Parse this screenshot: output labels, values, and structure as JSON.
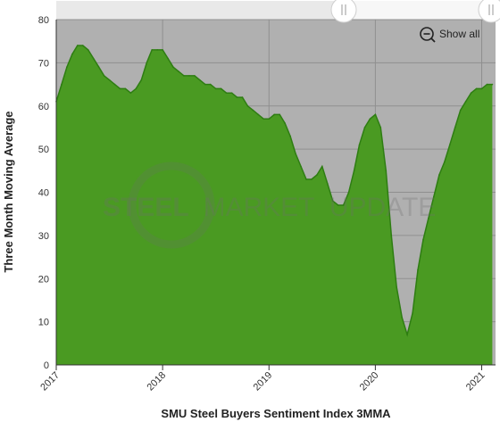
{
  "chart_data": {
    "type": "area",
    "title": "",
    "xlabel": "SMU Steel Buyers Sentiment Index 3MMA",
    "ylabel": "Three Month Moving Average",
    "xlim": [
      2017.0,
      2021.13
    ],
    "ylim": [
      0,
      80
    ],
    "x_ticks": [
      2017,
      2018,
      2019,
      2020,
      2021
    ],
    "x_tick_labels": [
      "2017",
      "2018",
      "2019",
      "2020",
      "2021"
    ],
    "y_ticks": [
      0,
      10,
      20,
      30,
      40,
      50,
      60,
      70,
      80
    ],
    "y_tick_labels": [
      "0",
      "10",
      "20",
      "30",
      "40",
      "50",
      "60",
      "70",
      "80"
    ],
    "grid": true,
    "navigator_range": [
      2017.0,
      2021.13
    ],
    "series": [
      {
        "color": "#4a9a22",
        "x": [
          2017.0,
          2017.05,
          2017.1,
          2017.15,
          2017.2,
          2017.25,
          2017.3,
          2017.35,
          2017.4,
          2017.45,
          2017.5,
          2017.55,
          2017.6,
          2017.65,
          2017.7,
          2017.75,
          2017.8,
          2017.85,
          2017.9,
          2017.95,
          2018.0,
          2018.05,
          2018.1,
          2018.15,
          2018.2,
          2018.25,
          2018.3,
          2018.35,
          2018.4,
          2018.45,
          2018.5,
          2018.55,
          2018.6,
          2018.65,
          2018.7,
          2018.75,
          2018.8,
          2018.85,
          2018.9,
          2018.95,
          2019.0,
          2019.05,
          2019.1,
          2019.15,
          2019.2,
          2019.25,
          2019.3,
          2019.35,
          2019.4,
          2019.45,
          2019.5,
          2019.55,
          2019.6,
          2019.65,
          2019.7,
          2019.75,
          2019.8,
          2019.85,
          2019.9,
          2019.95,
          2020.0,
          2020.05,
          2020.1,
          2020.15,
          2020.2,
          2020.25,
          2020.3,
          2020.35,
          2020.4,
          2020.45,
          2020.5,
          2020.55,
          2020.6,
          2020.65,
          2020.7,
          2020.75,
          2020.8,
          2020.85,
          2020.9,
          2020.95,
          2021.0,
          2021.05,
          2021.1
        ],
        "values": [
          61,
          65,
          69,
          72,
          74,
          74,
          73,
          71,
          69,
          67,
          66,
          65,
          64,
          64,
          63,
          64,
          66,
          70,
          73,
          73,
          73,
          71,
          69,
          68,
          67,
          67,
          67,
          66,
          65,
          65,
          64,
          64,
          63,
          63,
          62,
          62,
          60,
          59,
          58,
          57,
          57,
          58,
          58,
          56,
          53,
          49,
          46,
          43,
          43,
          44,
          46,
          42,
          38,
          37,
          37,
          40,
          45,
          51,
          55,
          57,
          58,
          55,
          45,
          30,
          18,
          11,
          7,
          12,
          22,
          29,
          34,
          39,
          44,
          47,
          51,
          55,
          59,
          61,
          63,
          64,
          64,
          65,
          65
        ]
      }
    ]
  },
  "ui": {
    "show_all_label": "Show all",
    "watermark": {
      "word1": "STEEL",
      "word2": "MARKET",
      "word3": "UPDATE"
    },
    "colors": {
      "plot_background": "#b0b0b0",
      "grid": "#8f8f8f",
      "area_fill": "#4a9a22",
      "area_stroke": "#2e7d12",
      "axis": "#333333"
    }
  }
}
